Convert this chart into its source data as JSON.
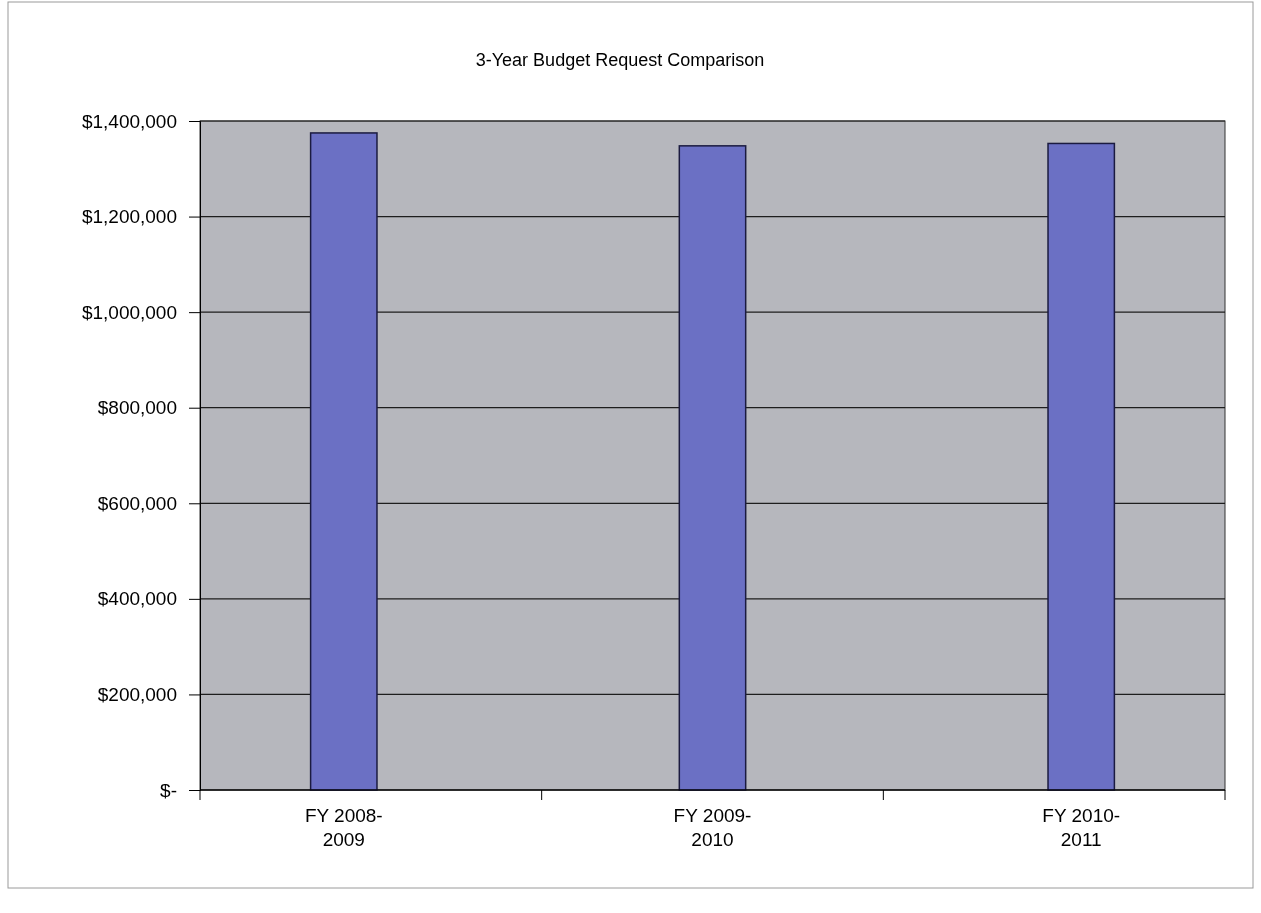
{
  "chart_data": {
    "type": "bar",
    "title": "3-Year Budget Request Comparison",
    "categories": [
      "FY 2008-2009",
      "FY 2009-2010",
      "FY 2010-2011"
    ],
    "values": [
      1375000,
      1348000,
      1353000
    ],
    "color": "#6b70c4",
    "ylim": [
      0,
      1400000
    ],
    "yticks": [
      {
        "value": 0,
        "label": "$-"
      },
      {
        "value": 200000,
        "label": "$200,000"
      },
      {
        "value": 400000,
        "label": "$400,000"
      },
      {
        "value": 600000,
        "label": "$600,000"
      },
      {
        "value": 800000,
        "label": "$800,000"
      },
      {
        "value": 1000000,
        "label": "$1,000,000"
      },
      {
        "value": 1200000,
        "label": "$1,200,000"
      },
      {
        "value": 1400000,
        "label": "$1,400,000"
      }
    ],
    "grid": "y"
  }
}
